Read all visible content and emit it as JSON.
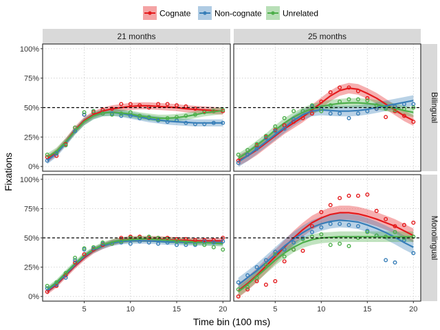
{
  "chart_data": {
    "type": "line",
    "xlabel": "Time bin (100 ms)",
    "ylabel": "Fixations",
    "xlim": [
      0.5,
      20.8
    ],
    "ylim": [
      -0.04,
      1.04
    ],
    "x_ticks": [
      5,
      10,
      15,
      20
    ],
    "y_ticks": [
      0,
      0.25,
      0.5,
      0.75,
      1.0
    ],
    "y_tick_labels": [
      "0%",
      "25%",
      "50%",
      "75%",
      "100%"
    ],
    "reference_line_y": 0.5,
    "grid": true,
    "legend_position": "top",
    "colors": {
      "Cognate": "#e41a1c",
      "Non-cognate": "#377eb8",
      "Unrelated": "#4daf4a"
    },
    "legend": [
      "Cognate",
      "Non-cognate",
      "Unrelated"
    ],
    "columns": [
      "21 months",
      "25 months"
    ],
    "rows": [
      "Bilingual",
      "Monolingual"
    ],
    "x": [
      1,
      2,
      3,
      4,
      5,
      6,
      7,
      8,
      9,
      10,
      11,
      12,
      13,
      14,
      15,
      16,
      17,
      18,
      19,
      20
    ],
    "panels": [
      {
        "row": "Bilingual",
        "column": "21 months",
        "series": [
          {
            "name": "Cognate",
            "points": [
              0.08,
              0.09,
              0.19,
              0.33,
              0.44,
              0.46,
              0.48,
              0.49,
              0.53,
              0.53,
              0.52,
              0.5,
              0.53,
              0.53,
              0.52,
              0.51,
              0.49,
              0.47,
              0.47,
              0.47
            ],
            "smooth": [
              0.06,
              0.12,
              0.21,
              0.31,
              0.39,
              0.44,
              0.47,
              0.49,
              0.5,
              0.51,
              0.515,
              0.515,
              0.51,
              0.505,
              0.5,
              0.49,
              0.485,
              0.48,
              0.475,
              0.47
            ],
            "se": 0.03
          },
          {
            "name": "Non-cognate",
            "points": [
              0.05,
              0.11,
              0.18,
              0.3,
              0.44,
              0.47,
              0.45,
              0.45,
              0.43,
              0.43,
              0.41,
              0.41,
              0.39,
              0.38,
              0.39,
              0.37,
              0.36,
              0.36,
              0.37,
              0.37
            ],
            "smooth": [
              0.05,
              0.11,
              0.2,
              0.3,
              0.38,
              0.43,
              0.455,
              0.46,
              0.45,
              0.435,
              0.42,
              0.405,
              0.395,
              0.385,
              0.38,
              0.375,
              0.37,
              0.37,
              0.37,
              0.37
            ],
            "se": 0.03
          },
          {
            "name": "Unrelated",
            "points": [
              0.1,
              0.12,
              0.18,
              0.33,
              0.46,
              0.47,
              0.45,
              0.44,
              0.45,
              0.46,
              0.43,
              0.42,
              0.4,
              0.41,
              0.42,
              0.43,
              0.44,
              0.46,
              0.47,
              0.48
            ],
            "smooth": [
              0.08,
              0.13,
              0.21,
              0.3,
              0.38,
              0.43,
              0.455,
              0.46,
              0.455,
              0.445,
              0.43,
              0.42,
              0.41,
              0.41,
              0.415,
              0.425,
              0.44,
              0.455,
              0.465,
              0.475
            ],
            "se": 0.03
          }
        ]
      },
      {
        "row": "Bilingual",
        "column": "25 months",
        "series": [
          {
            "name": "Cognate",
            "points": [
              0.05,
              0.1,
              0.18,
              0.25,
              0.31,
              0.35,
              0.38,
              0.41,
              0.45,
              0.55,
              0.63,
              0.67,
              0.67,
              0.64,
              0.58,
              0.49,
              0.42,
              0.47,
              0.43,
              0.38
            ],
            "smooth": [
              0.05,
              0.09,
              0.14,
              0.2,
              0.26,
              0.32,
              0.37,
              0.42,
              0.48,
              0.54,
              0.6,
              0.645,
              0.665,
              0.655,
              0.62,
              0.58,
              0.53,
              0.48,
              0.43,
              0.39
            ],
            "se": 0.045
          },
          {
            "name": "Non-cognate",
            "points": [
              0.03,
              0.1,
              0.15,
              0.24,
              0.3,
              0.32,
              0.4,
              0.47,
              0.51,
              0.49,
              0.45,
              0.45,
              0.41,
              0.45,
              0.47,
              0.49,
              0.5,
              0.51,
              0.53,
              0.53
            ],
            "smooth": [
              0.04,
              0.09,
              0.15,
              0.21,
              0.27,
              0.33,
              0.39,
              0.44,
              0.47,
              0.48,
              0.475,
              0.47,
              0.47,
              0.475,
              0.485,
              0.5,
              0.515,
              0.53,
              0.545,
              0.56
            ],
            "se": 0.045
          },
          {
            "name": "Unrelated",
            "points": [
              0.1,
              0.14,
              0.19,
              0.26,
              0.34,
              0.41,
              0.47,
              0.47,
              0.52,
              0.47,
              0.52,
              0.55,
              0.57,
              0.57,
              0.56,
              0.52,
              0.49,
              0.48,
              0.49,
              0.5
            ],
            "smooth": [
              0.07,
              0.12,
              0.18,
              0.24,
              0.31,
              0.37,
              0.42,
              0.46,
              0.49,
              0.51,
              0.525,
              0.535,
              0.54,
              0.54,
              0.535,
              0.525,
              0.51,
              0.495,
              0.475,
              0.46
            ],
            "se": 0.04
          }
        ]
      },
      {
        "row": "Monolingual",
        "column": "21 months",
        "series": [
          {
            "name": "Cognate",
            "points": [
              0.04,
              0.09,
              0.18,
              0.29,
              0.36,
              0.4,
              0.44,
              0.45,
              0.5,
              0.51,
              0.51,
              0.5,
              0.5,
              0.5,
              0.49,
              0.49,
              0.48,
              0.48,
              0.48,
              0.5
            ],
            "smooth": [
              0.04,
              0.1,
              0.18,
              0.26,
              0.33,
              0.39,
              0.43,
              0.46,
              0.48,
              0.49,
              0.49,
              0.49,
              0.49,
              0.485,
              0.48,
              0.48,
              0.475,
              0.475,
              0.475,
              0.475
            ],
            "se": 0.025
          },
          {
            "name": "Non-cognate",
            "points": [
              0.07,
              0.1,
              0.16,
              0.31,
              0.4,
              0.41,
              0.45,
              0.45,
              0.46,
              0.45,
              0.47,
              0.46,
              0.45,
              0.46,
              0.44,
              0.44,
              0.44,
              0.47,
              0.46,
              0.47
            ],
            "smooth": [
              0.05,
              0.11,
              0.19,
              0.27,
              0.34,
              0.395,
              0.43,
              0.455,
              0.47,
              0.475,
              0.475,
              0.475,
              0.47,
              0.465,
              0.465,
              0.46,
              0.46,
              0.46,
              0.46,
              0.46
            ],
            "se": 0.025
          },
          {
            "name": "Unrelated",
            "points": [
              0.09,
              0.12,
              0.2,
              0.33,
              0.41,
              0.42,
              0.46,
              0.45,
              0.47,
              0.5,
              0.5,
              0.51,
              0.5,
              0.49,
              0.47,
              0.46,
              0.45,
              0.44,
              0.42,
              0.4
            ],
            "smooth": [
              0.06,
              0.12,
              0.2,
              0.28,
              0.35,
              0.4,
              0.44,
              0.465,
              0.48,
              0.485,
              0.49,
              0.49,
              0.485,
              0.48,
              0.475,
              0.47,
              0.465,
              0.46,
              0.455,
              0.45
            ],
            "se": 0.025
          }
        ]
      },
      {
        "row": "Monolingual",
        "column": "25 months",
        "series": [
          {
            "name": "Cognate",
            "points": [
              0.0,
              0.06,
              0.13,
              0.1,
              0.13,
              0.3,
              0.4,
              0.39,
              0.6,
              0.72,
              0.78,
              0.84,
              0.86,
              0.86,
              0.87,
              0.73,
              0.66,
              0.6,
              0.61,
              0.63
            ],
            "smooth": [
              0.05,
              0.11,
              0.18,
              0.26,
              0.34,
              0.42,
              0.5,
              0.57,
              0.63,
              0.67,
              0.7,
              0.715,
              0.715,
              0.705,
              0.685,
              0.66,
              0.63,
              0.6,
              0.56,
              0.52
            ],
            "se": 0.06
          },
          {
            "name": "Non-cognate",
            "points": [
              0.12,
              0.18,
              0.25,
              0.31,
              0.38,
              0.4,
              0.46,
              0.5,
              0.55,
              0.59,
              0.62,
              0.62,
              0.61,
              0.6,
              0.56,
              0.52,
              0.31,
              0.29,
              0.48,
              0.37
            ],
            "smooth": [
              0.1,
              0.16,
              0.22,
              0.29,
              0.36,
              0.43,
              0.49,
              0.545,
              0.59,
              0.62,
              0.64,
              0.65,
              0.645,
              0.635,
              0.61,
              0.58,
              0.545,
              0.505,
              0.46,
              0.42
            ],
            "se": 0.06
          },
          {
            "name": "Unrelated",
            "points": [
              0.06,
              0.08,
              0.16,
              0.27,
              0.36,
              0.34,
              0.4,
              0.49,
              0.51,
              0.53,
              0.44,
              0.45,
              0.43,
              0.5,
              0.55,
              0.52,
              0.51,
              0.55,
              0.5,
              0.51
            ],
            "smooth": [
              0.04,
              0.1,
              0.17,
              0.24,
              0.31,
              0.37,
              0.42,
              0.46,
              0.485,
              0.5,
              0.505,
              0.51,
              0.51,
              0.51,
              0.51,
              0.51,
              0.51,
              0.51,
              0.51,
              0.51
            ],
            "se": 0.045
          }
        ]
      }
    ]
  }
}
